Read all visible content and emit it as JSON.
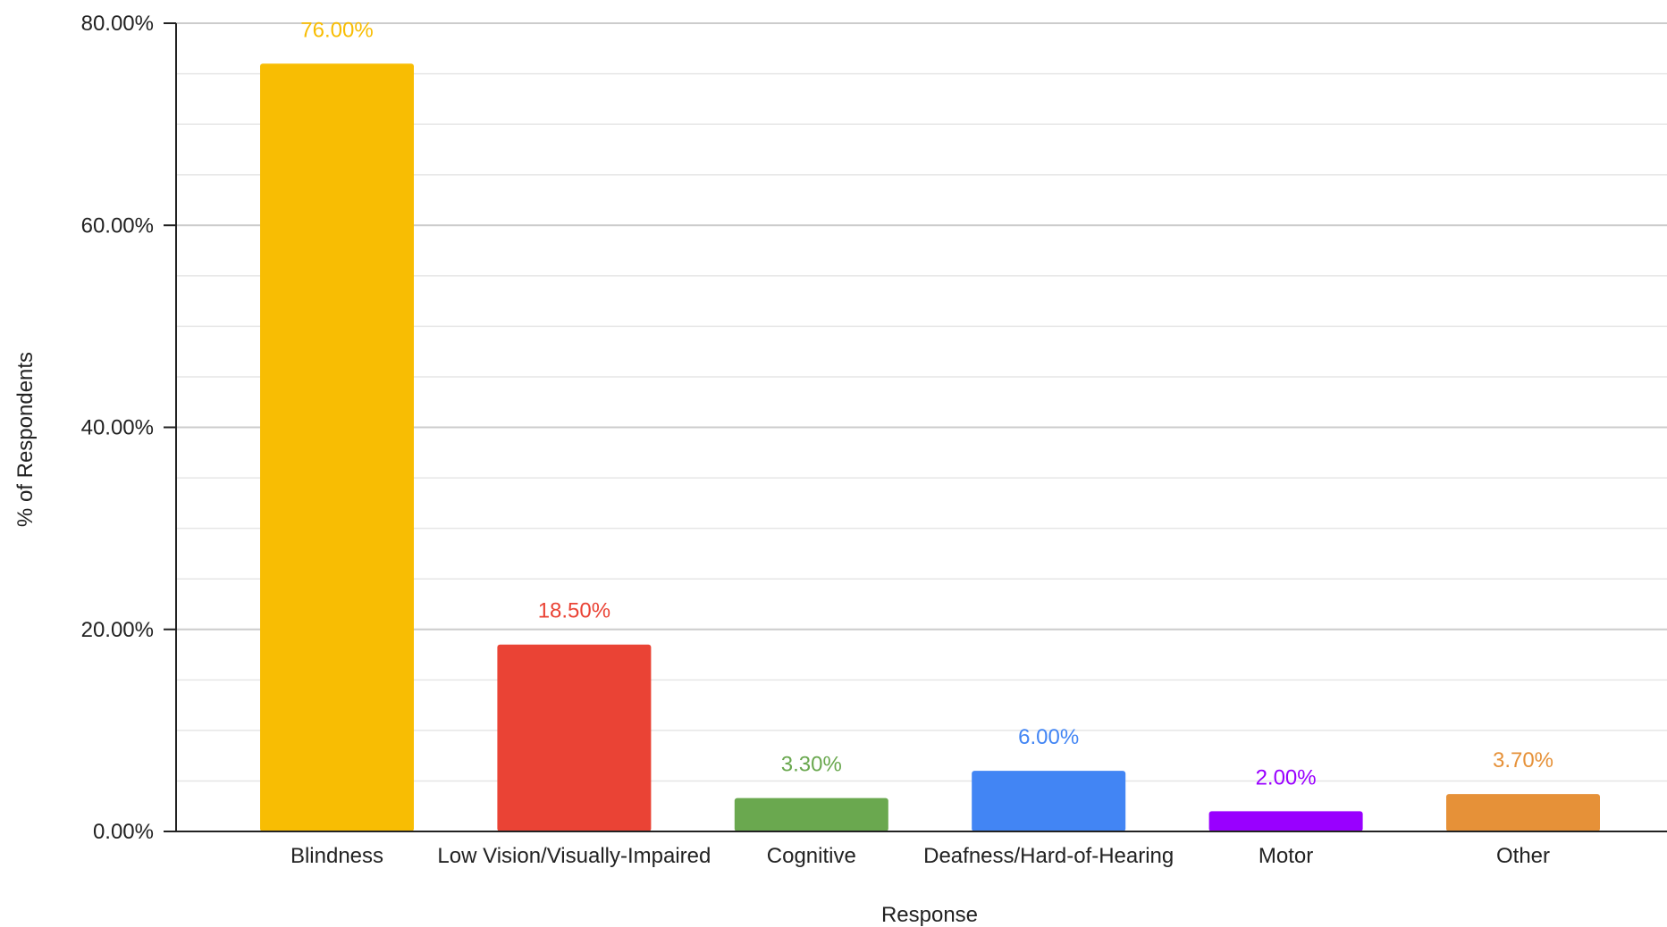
{
  "chart_data": {
    "type": "bar",
    "title": "",
    "xlabel": "Response",
    "ylabel": "% of Respondents",
    "ylim": [
      0,
      80
    ],
    "grid": true,
    "yticks": [
      "0.00%",
      "20.00%",
      "40.00%",
      "60.00%",
      "80.00%"
    ],
    "categories": [
      "Blindness",
      "Low Vision/Visually-Impaired",
      "Cognitive",
      "Deafness/Hard-of-Hearing",
      "Motor",
      "Other"
    ],
    "values": [
      76.0,
      18.5,
      3.3,
      6.0,
      2.0,
      3.7
    ],
    "data_labels": [
      "76.00%",
      "18.50%",
      "3.30%",
      "6.00%",
      "2.00%",
      "3.70%"
    ],
    "colors": [
      "#F8BD03",
      "#EA4335",
      "#6AA84F",
      "#4285F4",
      "#9900FF",
      "#E69138"
    ]
  }
}
